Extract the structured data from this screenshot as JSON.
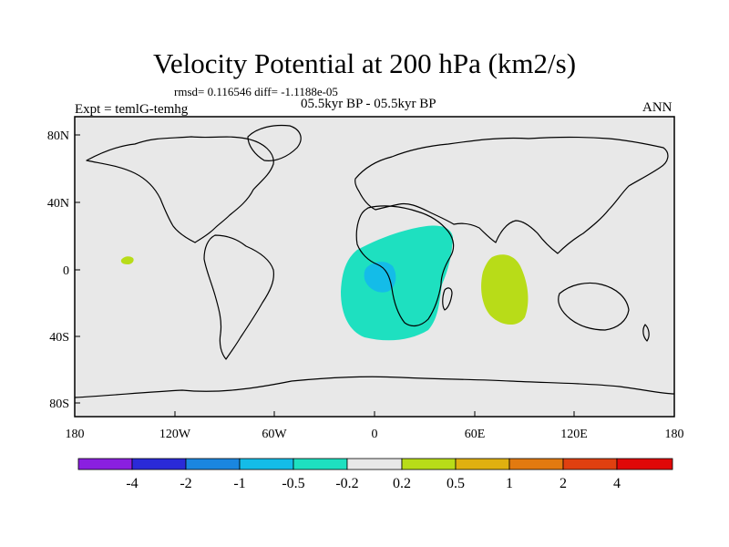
{
  "header": {
    "title": "Velocity Potential at 200 hPa (km2/s)",
    "stats": "rmsd= 0.116546 diff= -1.1188e-05",
    "experiment": "Expt = temlG-temhg",
    "period": "05.5kyr BP - 05.5kyr BP",
    "season": "ANN"
  },
  "axes": {
    "x_ticks": [
      "180",
      "120W",
      "60W",
      "0",
      "60E",
      "120E",
      "180"
    ],
    "y_ticks": [
      "80N",
      "40N",
      "0",
      "40S",
      "80S"
    ]
  },
  "colorbar": {
    "colors": [
      "#8a1fe0",
      "#2a2ad8",
      "#1a86e0",
      "#14bce8",
      "#1ee0c0",
      "#e8e8e8",
      "#b8dc18",
      "#e0b010",
      "#e27a10",
      "#e04010",
      "#e00808"
    ],
    "labels": [
      "-4",
      "-2",
      "-1",
      "-0.5",
      "-0.2",
      "0.2",
      "0.5",
      "1",
      "2",
      "4"
    ]
  },
  "map_colors": {
    "background": "#e8e8e8",
    "negative_shade": "#1ee0c0",
    "strong_negative_shade": "#14bce8",
    "positive_shade": "#b8dc18"
  }
}
